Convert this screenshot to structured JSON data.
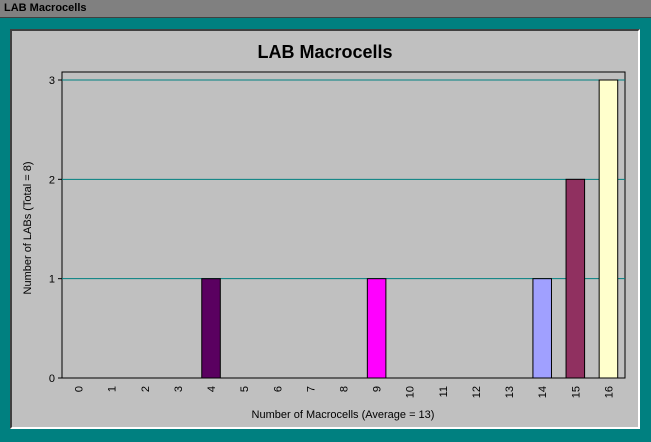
{
  "window": {
    "title": "LAB Macrocells"
  },
  "colors": {
    "background": "#c0c0c0",
    "gridline": "#008080",
    "frame": "#008080"
  },
  "chart_data": {
    "type": "bar",
    "title": "LAB Macrocells",
    "xlabel": "Number of Macrocells  (Average = 13)",
    "ylabel": "Number of LABs  (Total = 8)",
    "categories": [
      "0",
      "1",
      "2",
      "3",
      "4",
      "5",
      "6",
      "7",
      "8",
      "9",
      "10",
      "11",
      "12",
      "13",
      "14",
      "15",
      "16"
    ],
    "values": [
      0,
      0,
      0,
      0,
      1,
      0,
      0,
      0,
      0,
      1,
      0,
      0,
      0,
      0,
      1,
      2,
      3
    ],
    "bar_colors": [
      "#808080",
      "#808080",
      "#808080",
      "#808080",
      "#5a0060",
      "#808080",
      "#808080",
      "#808080",
      "#808080",
      "#ff00ff",
      "#808080",
      "#808080",
      "#808080",
      "#808080",
      "#a0a0ff",
      "#903060",
      "#ffffcc"
    ],
    "ylim": [
      0,
      3
    ],
    "yticks": [
      0,
      1,
      2,
      3
    ],
    "grid": true,
    "legend": false
  }
}
